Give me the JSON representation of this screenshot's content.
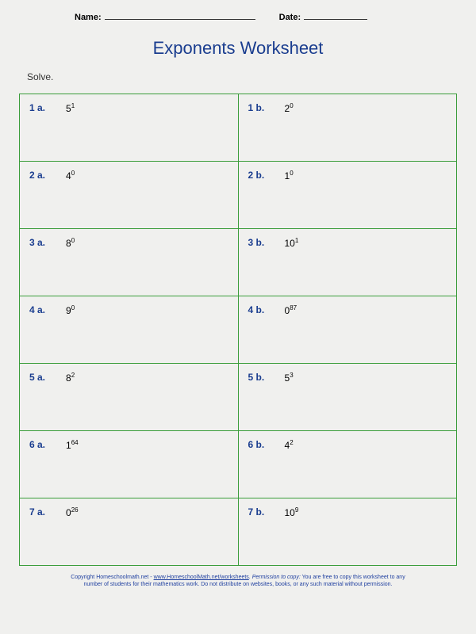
{
  "header": {
    "name_label": "Name:",
    "date_label": "Date:"
  },
  "title": "Exponents Worksheet",
  "title_color": "#1a3d8f",
  "instruction": "Solve.",
  "table": {
    "border_color": "#3a9d3a",
    "label_color": "#1a3d8f",
    "rows": [
      {
        "a": {
          "label": "1 a.",
          "base": "5",
          "exp": "1"
        },
        "b": {
          "label": "1 b.",
          "base": "2",
          "exp": "0"
        }
      },
      {
        "a": {
          "label": "2 a.",
          "base": "4",
          "exp": "0"
        },
        "b": {
          "label": "2 b.",
          "base": "1",
          "exp": "0"
        }
      },
      {
        "a": {
          "label": "3 a.",
          "base": "8",
          "exp": "0"
        },
        "b": {
          "label": "3 b.",
          "base": "10",
          "exp": "1"
        }
      },
      {
        "a": {
          "label": "4 a.",
          "base": "9",
          "exp": "0"
        },
        "b": {
          "label": "4 b.",
          "base": "0",
          "exp": "87"
        }
      },
      {
        "a": {
          "label": "5 a.",
          "base": "8",
          "exp": "2"
        },
        "b": {
          "label": "5 b.",
          "base": "5",
          "exp": "3"
        }
      },
      {
        "a": {
          "label": "6 a.",
          "base": "1",
          "exp": "64"
        },
        "b": {
          "label": "6 b.",
          "base": "4",
          "exp": "2"
        }
      },
      {
        "a": {
          "label": "7 a.",
          "base": "0",
          "exp": "26"
        },
        "b": {
          "label": "7 b.",
          "base": "10",
          "exp": "9"
        }
      }
    ]
  },
  "footer": {
    "line1a": "Copyright Homeschoolmath.net - ",
    "line1b": "www.HomeschoolMath.net/worksheets",
    "line1c": ".  ",
    "line1d": "Permission to copy:",
    "line1e": " You are free to copy this worksheet to any",
    "line2": "number of students for their mathematics work. Do not distribute on websites, books, or any such material without permission."
  }
}
